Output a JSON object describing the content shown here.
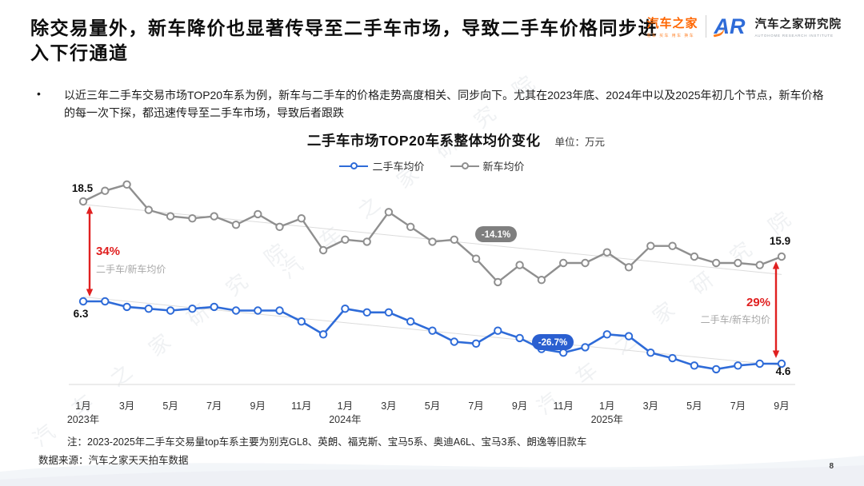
{
  "header": {
    "title": "除交易量外，新车降价也显著传导至二手车市场，导致二手车价格同步进入下行通道",
    "logo": {
      "brand": "汽车之家",
      "tagline": "看车 买车 用车 换车",
      "mark": "AR",
      "institute": "汽车之家研究院",
      "institute_en": "AUTOHOME RESEARCH INSTITUTE"
    }
  },
  "bullet": {
    "marker": "•",
    "text": "以近三年二手车交易市场TOP20车系为例，新车与二手车的价格走势高度相关、同步向下。尤其在2023年底、2024年中以及2025年初几个节点，新车价格的每一次下探，都迅速传导至二手车市场，导致后者跟跌"
  },
  "chart_data": {
    "type": "line",
    "title": "二手车市场TOP20车系整体均价变化",
    "unit_label": "单位：万元",
    "legend": [
      {
        "name": "二手车均价",
        "color": "#2e6bd8"
      },
      {
        "name": "新车均价",
        "color": "#8f8f8f"
      }
    ],
    "x_axis": {
      "months_total": 33,
      "ticks": [
        {
          "label": "1月",
          "month_index": 0
        },
        {
          "label": "3月",
          "month_index": 2
        },
        {
          "label": "5月",
          "month_index": 4
        },
        {
          "label": "7月",
          "month_index": 6
        },
        {
          "label": "9月",
          "month_index": 8
        },
        {
          "label": "11月",
          "month_index": 10
        },
        {
          "label": "1月",
          "month_index": 12
        },
        {
          "label": "3月",
          "month_index": 14
        },
        {
          "label": "5月",
          "month_index": 16
        },
        {
          "label": "7月",
          "month_index": 18
        },
        {
          "label": "9月",
          "month_index": 20
        },
        {
          "label": "11月",
          "month_index": 22
        },
        {
          "label": "1月",
          "month_index": 24
        },
        {
          "label": "3月",
          "month_index": 26
        },
        {
          "label": "5月",
          "month_index": 28
        },
        {
          "label": "7月",
          "month_index": 30
        },
        {
          "label": "9月",
          "month_index": 32
        }
      ],
      "years": [
        {
          "label": "2023年",
          "month_index": 0
        },
        {
          "label": "2024年",
          "month_index": 12
        },
        {
          "label": "2025年",
          "month_index": 24
        }
      ]
    },
    "series": [
      {
        "name": "二手车均价",
        "color": "#2e6bd8",
        "values": [
          6.3,
          6.3,
          6.15,
          6.1,
          6.05,
          6.1,
          6.15,
          6.05,
          6.05,
          6.05,
          5.75,
          5.4,
          6.1,
          6.0,
          6.0,
          5.75,
          5.5,
          5.2,
          5.15,
          5.5,
          5.3,
          5.0,
          4.9,
          5.05,
          5.4,
          5.35,
          4.9,
          4.75,
          4.55,
          4.45,
          4.55,
          4.6,
          4.6
        ]
      },
      {
        "name": "新车均价",
        "color": "#8f8f8f",
        "values": [
          18.5,
          19.0,
          19.3,
          18.1,
          17.8,
          17.7,
          17.8,
          17.4,
          17.9,
          17.3,
          17.7,
          16.2,
          16.7,
          16.6,
          18.0,
          17.3,
          16.6,
          16.7,
          15.8,
          14.7,
          15.5,
          14.8,
          15.6,
          15.6,
          16.1,
          15.4,
          16.4,
          16.4,
          15.9,
          15.6,
          15.6,
          15.5,
          15.9
        ]
      }
    ],
    "endpoint_labels": {
      "new_start": "18.5",
      "used_start": "6.3",
      "new_end": "15.9",
      "used_end": "4.6"
    },
    "ratio_left": {
      "value": "34%",
      "label": "二手车/新车均价"
    },
    "ratio_right": {
      "value": "29%",
      "label": "二手车/新车均价"
    },
    "change_badges": [
      {
        "series": "新车均价",
        "value": "-14.1%",
        "color": "#7f7f7f"
      },
      {
        "series": "二手车均价",
        "value": "-26.7%",
        "color": "#2a5fd0"
      }
    ],
    "accent_red": "#e02020",
    "watermark": "汽 车 之 家 研 究 院"
  },
  "footer": {
    "note": "注：2023-2025年二手车交易量top车系主要为别克GL8、英朗、福克斯、宝马5系、奥迪A6L、宝马3系、朗逸等旧款车",
    "source": "数据来源：汽车之家天天拍车数据",
    "page_number": "8"
  }
}
